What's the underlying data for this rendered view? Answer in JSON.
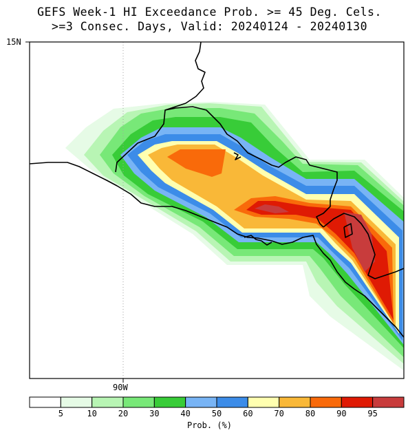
{
  "title": {
    "line1": "GEFS Week-1 HI Exceedance Prob. >= 45 Deg. Cels.",
    "line2": ">=3 Consec. Days, Valid: 20240124 - 20240130"
  },
  "map": {
    "lat_label": "15N",
    "lon_label": "90W",
    "lon_gridline": "dotted"
  },
  "colorbar": {
    "title": "Prob. (%)",
    "tick_labels": [
      "5",
      "10",
      "20",
      "30",
      "40",
      "50",
      "60",
      "70",
      "80",
      "90",
      "95"
    ],
    "colors": [
      "#ffffff",
      "#e6fbe6",
      "#b8f5b4",
      "#78e878",
      "#38cc38",
      "#78b4f5",
      "#3c8ce8",
      "#ffffb0",
      "#f9b838",
      "#f96a0a",
      "#df1a04",
      "#c83c3c"
    ]
  },
  "legend_colors": {
    "coast": "#000000",
    "lon_gridline": "#a0a0a0"
  }
}
